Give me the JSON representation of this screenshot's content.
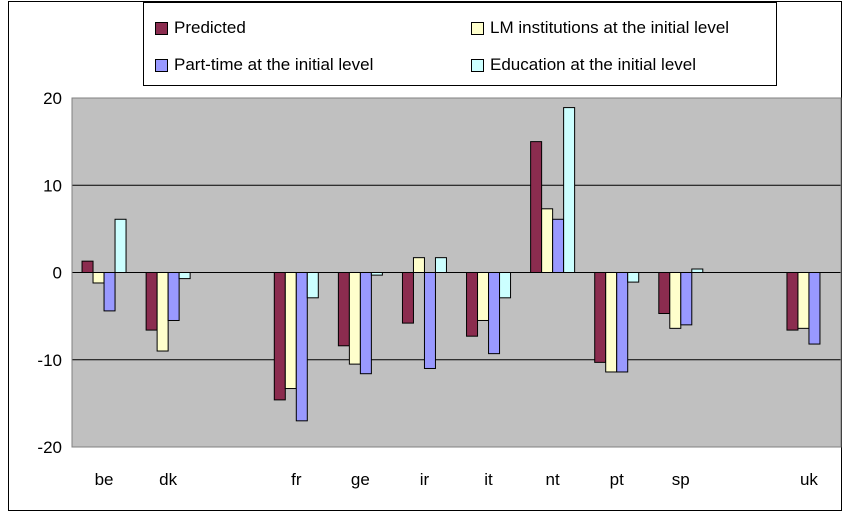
{
  "chart_data": {
    "type": "bar",
    "categories": [
      "be",
      "dk",
      "",
      "fr",
      "ge",
      "ir",
      "it",
      "nt",
      "pt",
      "sp",
      "",
      "uk"
    ],
    "series": [
      {
        "name": "Predicted",
        "color": "#8b2c4f",
        "values": [
          1.3,
          -6.6,
          null,
          -14.6,
          -8.4,
          -5.8,
          -7.3,
          15.0,
          -10.3,
          -4.7,
          null,
          -6.6
        ]
      },
      {
        "name": "LM institutions at the initial level",
        "color": "#ffffcc",
        "values": [
          -1.2,
          -9.0,
          null,
          -13.3,
          -10.5,
          1.7,
          -5.5,
          7.3,
          -11.4,
          -6.4,
          null,
          -6.4
        ]
      },
      {
        "name": "Part-time at the initial level",
        "color": "#9999ff",
        "values": [
          -4.4,
          -5.5,
          null,
          -17.0,
          -11.6,
          -11.0,
          -9.3,
          6.1,
          -11.4,
          -6.0,
          null,
          -8.2
        ]
      },
      {
        "name": "Education at the initial level",
        "color": "#ccffff",
        "values": [
          6.1,
          -0.7,
          null,
          -2.9,
          -0.3,
          1.7,
          -2.9,
          18.9,
          -1.1,
          0.4,
          null,
          null
        ]
      }
    ],
    "ylim": [
      -20,
      20
    ],
    "yticks": [
      -20,
      -10,
      0,
      10,
      20
    ],
    "grid": true,
    "plot_background": "#c0c0c0",
    "legend_position": "top"
  }
}
